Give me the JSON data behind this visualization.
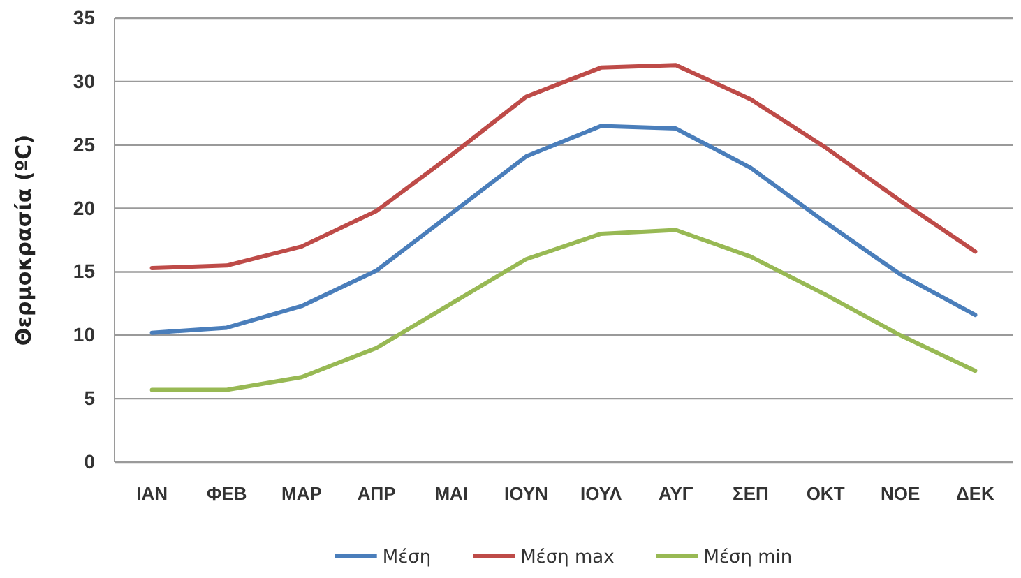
{
  "chart_data": {
    "type": "line",
    "ylabel": "Θερμοκρασία (ºC)",
    "categories": [
      "ΙΑΝ",
      "ΦΕΒ",
      "ΜΑΡ",
      "ΑΠΡ",
      "ΜΑΙ",
      "ΙΟΥΝ",
      "ΙΟΥΛ",
      "ΑΥΓ",
      "ΣΕΠ",
      "ΟΚΤ",
      "ΝΟΕ",
      "ΔΕΚ"
    ],
    "series": [
      {
        "name": "Μέση",
        "color": "#4a7ebb",
        "values": [
          10.2,
          10.6,
          12.3,
          15.1,
          19.6,
          24.1,
          26.5,
          26.3,
          23.2,
          18.9,
          14.8,
          11.6
        ]
      },
      {
        "name": "Μέση max",
        "color": "#be4b48",
        "values": [
          15.3,
          15.5,
          17.0,
          19.8,
          24.2,
          28.8,
          31.1,
          31.3,
          28.6,
          24.8,
          20.6,
          16.6
        ]
      },
      {
        "name": "Μέση min",
        "color": "#98b954",
        "values": [
          5.7,
          5.7,
          6.7,
          9.0,
          12.5,
          16.0,
          18.0,
          18.3,
          16.2,
          13.2,
          10.0,
          7.2
        ]
      }
    ],
    "ylim": [
      0,
      35
    ],
    "yticks": [
      0,
      5,
      10,
      15,
      20,
      25,
      30,
      35
    ],
    "grid": "y",
    "legend": "bottom",
    "marker": "none",
    "line_style": "solid"
  }
}
